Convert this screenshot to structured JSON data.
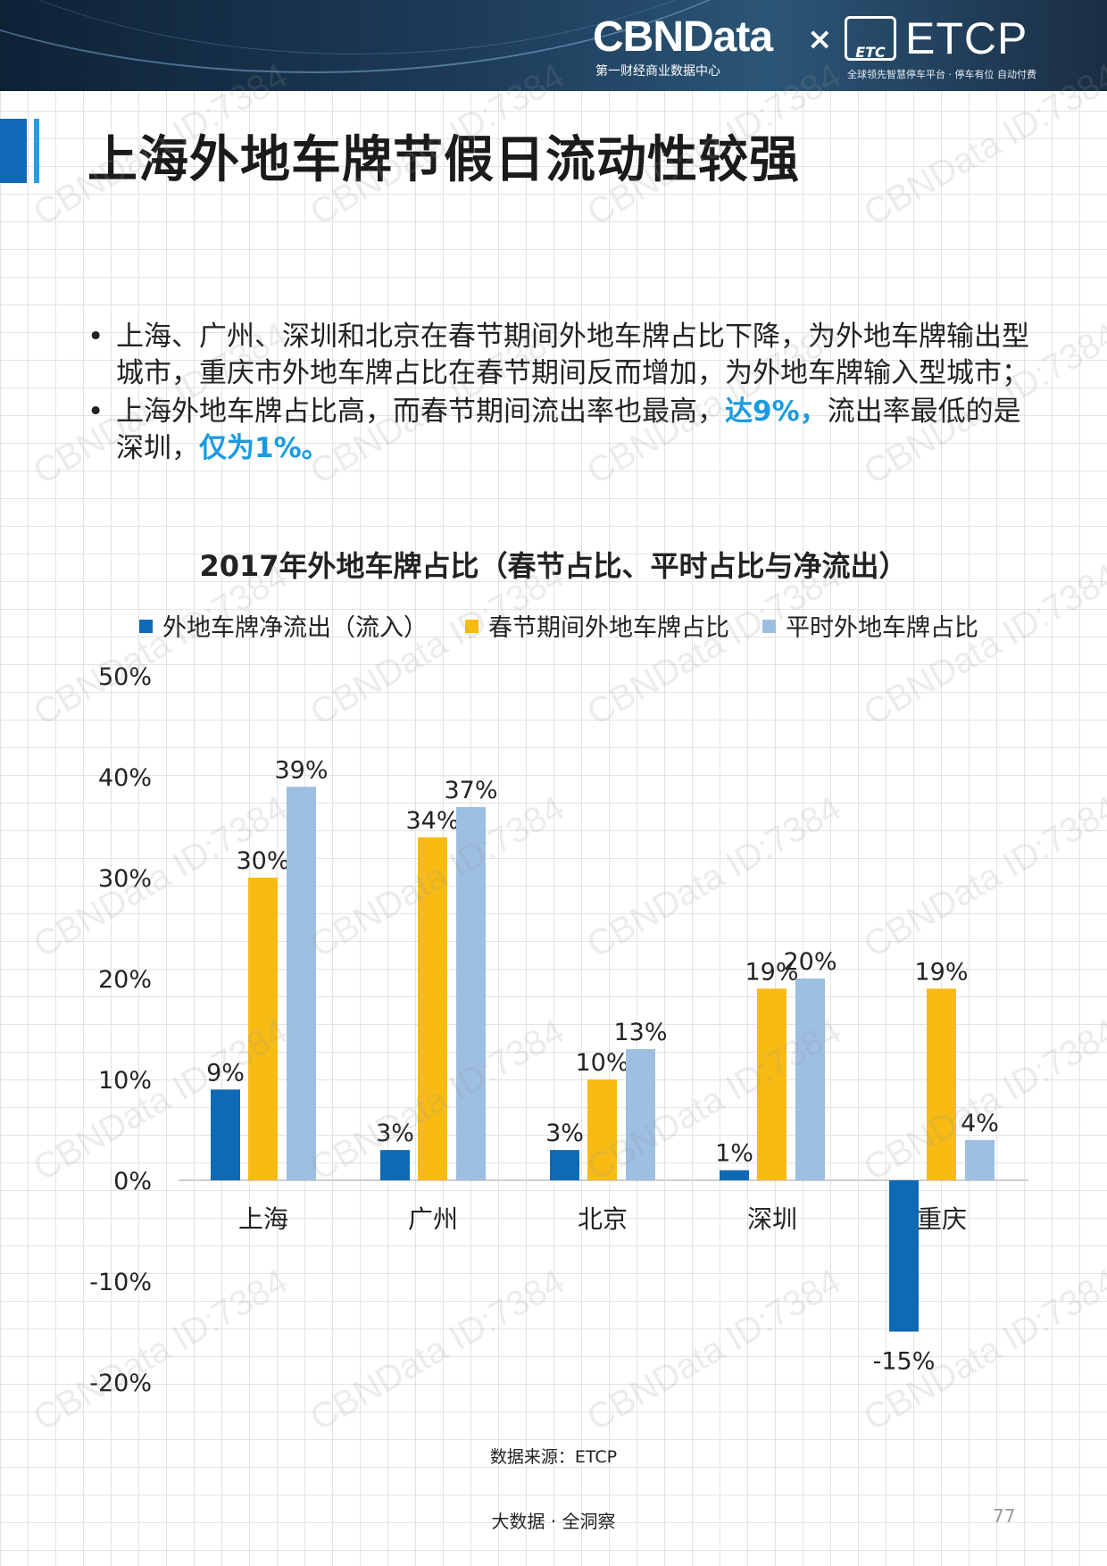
{
  "header": {
    "brand": "CBNData",
    "brand_sub": "第一财经商业数据中心",
    "separator": "×",
    "partner_badge": "ETC",
    "partner": "ETCP",
    "partner_sub": "全球领先智慧停车平台 · 停车有位 自动付费"
  },
  "page": {
    "title": "上海外地车牌节假日流动性较强",
    "bullets": [
      {
        "text": "上海、广州、深圳和北京在春节期间外地车牌占比下降，为外地车牌输出型城市，重庆市外地车牌占比在春节期间反而增加，为外地车牌输入型城市；"
      },
      {
        "text_a": "上海外地车牌占比高，而春节期间流出率也最高，",
        "hl_a": "达9%，",
        "text_b": "流出率最低的是深圳，",
        "hl_b": "仅为1%。"
      }
    ],
    "source": "数据来源：ETCP",
    "footer": "大数据 · 全洞察",
    "page_number": "77"
  },
  "watermark_text": "CBNData ID:7384",
  "chart_data": {
    "type": "bar",
    "title": "2017年外地车牌占比（春节占比、平时占比与净流出）",
    "categories": [
      "上海",
      "广州",
      "北京",
      "深圳",
      "重庆"
    ],
    "series": [
      {
        "name": "外地车牌净流出（流入）",
        "color": "#0f6ab5",
        "values": [
          9,
          3,
          3,
          1,
          -15
        ],
        "labels": [
          "9%",
          "3%",
          "3%",
          "1%",
          "-15%"
        ]
      },
      {
        "name": "春节期间外地车牌占比",
        "color": "#f8bb14",
        "values": [
          30,
          34,
          10,
          19,
          19
        ],
        "labels": [
          "30%",
          "34%",
          "10%",
          "19%",
          "19%"
        ]
      },
      {
        "name": "平时外地车牌占比",
        "color": "#9dbfe2",
        "values": [
          39,
          37,
          13,
          20,
          4
        ],
        "labels": [
          "39%",
          "37%",
          "13%",
          "20%",
          "4%"
        ]
      }
    ],
    "ylim": [
      -20,
      50
    ],
    "yticks": [
      "-20%",
      "-10%",
      "0%",
      "10%",
      "20%",
      "30%",
      "40%",
      "50%"
    ],
    "ytick_values": [
      -20,
      -10,
      0,
      10,
      20,
      30,
      40,
      50
    ],
    "legend": "top",
    "grid": false,
    "xlabel": "",
    "ylabel": ""
  }
}
